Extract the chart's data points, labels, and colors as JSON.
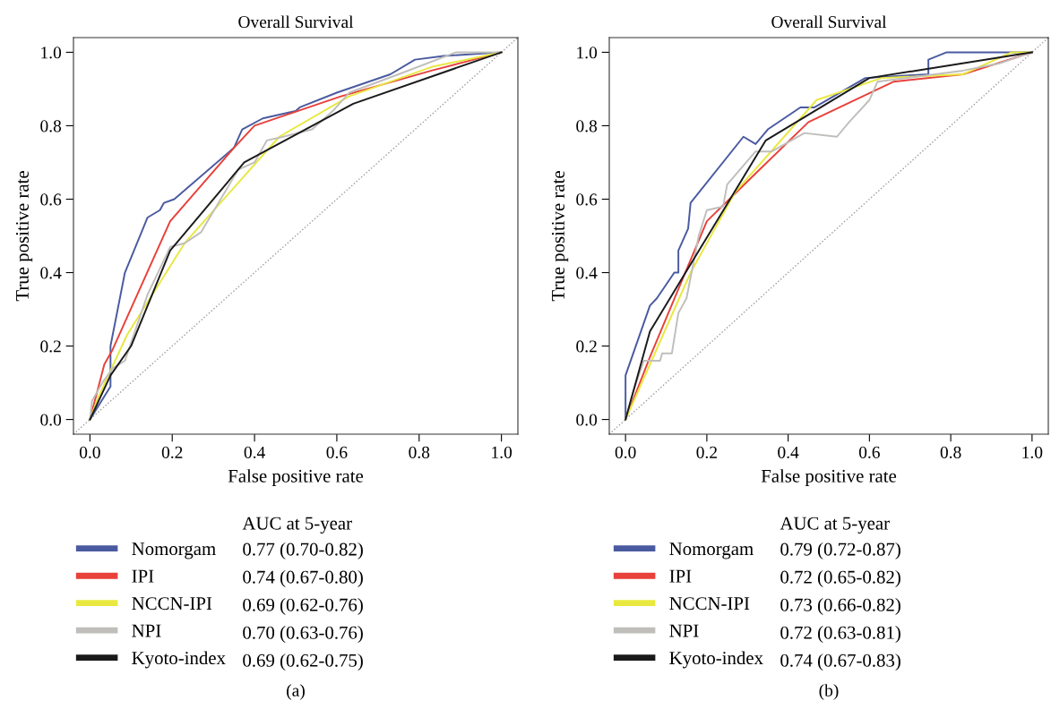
{
  "chart_data": [
    {
      "type": "line",
      "title": "Overall Survival",
      "xlabel": "False positive rate",
      "ylabel": "True positive rate",
      "legend_title": "AUC at 5-year",
      "legend": "bottom",
      "grid": false,
      "marker": "none",
      "xlim": [
        -0.04,
        1.04
      ],
      "ylim": [
        -0.04,
        1.04
      ],
      "xticks": [
        {
          "value": 0,
          "label": "0.0"
        },
        {
          "value": 0.2,
          "label": "0.2"
        },
        {
          "value": 0.4,
          "label": "0.4"
        },
        {
          "value": 0.6,
          "label": "0.6"
        },
        {
          "value": 0.8,
          "label": "0.8"
        },
        {
          "value": 1,
          "label": "1.0"
        }
      ],
      "yticks": [
        {
          "value": 0,
          "label": "0.0"
        },
        {
          "value": 0.2,
          "label": "0.2"
        },
        {
          "value": 0.4,
          "label": "0.4"
        },
        {
          "value": 0.6,
          "label": "0.6"
        },
        {
          "value": 0.8,
          "label": "0.8"
        },
        {
          "value": 1,
          "label": "1.0"
        }
      ],
      "series": [
        {
          "name": "Nomorgam",
          "color": "#4a5aa0",
          "x": [
            0,
            0.05,
            0.05,
            0.085,
            0.14,
            0.17,
            0.18,
            0.205,
            0.35,
            0.37,
            0.42,
            0.5,
            0.51,
            0.6,
            0.73,
            0.79,
            0.86,
            1
          ],
          "values": [
            0,
            0.09,
            0.2,
            0.4,
            0.55,
            0.57,
            0.59,
            0.6,
            0.74,
            0.79,
            0.82,
            0.84,
            0.85,
            0.89,
            0.94,
            0.98,
            0.99,
            1
          ]
        },
        {
          "name": "IPI",
          "color": "#e8403a",
          "x": [
            0,
            0.035,
            0.055,
            0.195,
            0.35,
            0.4,
            0.61,
            0.83,
            1
          ],
          "values": [
            0,
            0.15,
            0.19,
            0.54,
            0.74,
            0.8,
            0.88,
            0.95,
            1
          ]
        },
        {
          "name": "NCCN-IPI",
          "color": "#e8e840",
          "x": [
            0,
            0.02,
            0.09,
            0.23,
            0.46,
            0.63,
            0.83,
            1
          ],
          "values": [
            0,
            0.06,
            0.23,
            0.48,
            0.77,
            0.88,
            0.96,
            1
          ]
        },
        {
          "name": "NPI",
          "color": "#c0bebb",
          "x": [
            0,
            0.005,
            0.03,
            0.056,
            0.085,
            0.14,
            0.195,
            0.23,
            0.27,
            0.36,
            0.4,
            0.43,
            0.47,
            0.54,
            0.59,
            0.63,
            0.75,
            0.89,
            1
          ],
          "values": [
            0,
            0.05,
            0.1,
            0.14,
            0.16,
            0.34,
            0.47,
            0.48,
            0.51,
            0.68,
            0.7,
            0.76,
            0.77,
            0.79,
            0.84,
            0.89,
            0.94,
            1,
            1
          ]
        },
        {
          "name": "Kyoto-index",
          "color": "#1a1a1a",
          "x": [
            0,
            0.05,
            0.1,
            0.195,
            0.375,
            0.64,
            1
          ],
          "values": [
            0,
            0.12,
            0.2,
            0.46,
            0.7,
            0.86,
            1
          ]
        },
        {
          "color": "#9a9a9a",
          "line_style": "dotted",
          "x": [
            -0.04,
            1.04
          ],
          "values": [
            -0.04,
            1.04
          ]
        }
      ],
      "annotations": [
        "0.77 (0.70-0.82)",
        "0.74 (0.67-0.80)",
        "0.69 (0.62-0.76)",
        "0.70 (0.63-0.76)",
        "0.69 (0.62-0.75)",
        "(a)"
      ]
    },
    {
      "type": "line",
      "title": "Overall Survival",
      "xlabel": "False positive rate",
      "ylabel": "True positive rate",
      "legend_title": "AUC at 5-year",
      "legend": "bottom",
      "grid": false,
      "marker": "none",
      "xlim": [
        -0.04,
        1.04
      ],
      "ylim": [
        -0.04,
        1.04
      ],
      "xticks": [
        {
          "value": 0,
          "label": "0.0"
        },
        {
          "value": 0.2,
          "label": "0.2"
        },
        {
          "value": 0.4,
          "label": "0.4"
        },
        {
          "value": 0.6,
          "label": "0.6"
        },
        {
          "value": 0.8,
          "label": "0.8"
        },
        {
          "value": 1,
          "label": "1.0"
        }
      ],
      "yticks": [
        {
          "value": 0,
          "label": "0.0"
        },
        {
          "value": 0.2,
          "label": "0.2"
        },
        {
          "value": 0.4,
          "label": "0.4"
        },
        {
          "value": 0.6,
          "label": "0.6"
        },
        {
          "value": 0.8,
          "label": "0.8"
        },
        {
          "value": 1,
          "label": "1.0"
        }
      ],
      "series": [
        {
          "name": "Nomorgam",
          "color": "#4a5aa0",
          "x": [
            0,
            0,
            0.06,
            0.077,
            0.12,
            0.13,
            0.13,
            0.154,
            0.16,
            0.29,
            0.32,
            0.35,
            0.43,
            0.465,
            0.59,
            0.745,
            0.745,
            0.79,
            1
          ],
          "values": [
            0,
            0.12,
            0.31,
            0.33,
            0.4,
            0.4,
            0.46,
            0.52,
            0.59,
            0.77,
            0.75,
            0.79,
            0.85,
            0.85,
            0.93,
            0.94,
            0.98,
            1,
            1
          ]
        },
        {
          "name": "IPI",
          "color": "#e8403a",
          "x": [
            0,
            0.06,
            0.2,
            0.32,
            0.45,
            0.66,
            0.83,
            1
          ],
          "values": [
            0,
            0.17,
            0.54,
            0.67,
            0.81,
            0.92,
            0.94,
            1
          ]
        },
        {
          "name": "NCCN-IPI",
          "color": "#e8e840",
          "x": [
            0,
            0.16,
            0.27,
            0.47,
            0.55,
            0.63,
            0.83,
            0.95,
            1
          ],
          "values": [
            0,
            0.4,
            0.62,
            0.87,
            0.9,
            0.93,
            0.94,
            1,
            1
          ]
        },
        {
          "name": "NPI",
          "color": "#c0bebb",
          "x": [
            0,
            0.02,
            0.045,
            0.085,
            0.09,
            0.114,
            0.13,
            0.15,
            0.18,
            0.2,
            0.24,
            0.25,
            0.32,
            0.36,
            0.44,
            0.52,
            0.55,
            0.6,
            0.62,
            0.83,
            0.92,
            1
          ],
          "values": [
            0,
            0.08,
            0.16,
            0.16,
            0.18,
            0.18,
            0.29,
            0.33,
            0.5,
            0.57,
            0.58,
            0.64,
            0.73,
            0.73,
            0.78,
            0.77,
            0.81,
            0.87,
            0.92,
            0.95,
            0.97,
            1
          ]
        },
        {
          "name": "Kyoto-index",
          "color": "#1a1a1a",
          "x": [
            0,
            0.06,
            0.345,
            0.6,
            1
          ],
          "values": [
            0,
            0.24,
            0.76,
            0.93,
            1
          ]
        },
        {
          "color": "#9a9a9a",
          "line_style": "dotted",
          "x": [
            -0.04,
            1.04
          ],
          "values": [
            -0.04,
            1.04
          ]
        }
      ],
      "annotations": [
        "0.79 (0.72-0.87)",
        "0.72 (0.65-0.82)",
        "0.73 (0.66-0.82)",
        "0.72 (0.63-0.81)",
        "0.74 (0.67-0.83)",
        "(b)"
      ]
    }
  ]
}
